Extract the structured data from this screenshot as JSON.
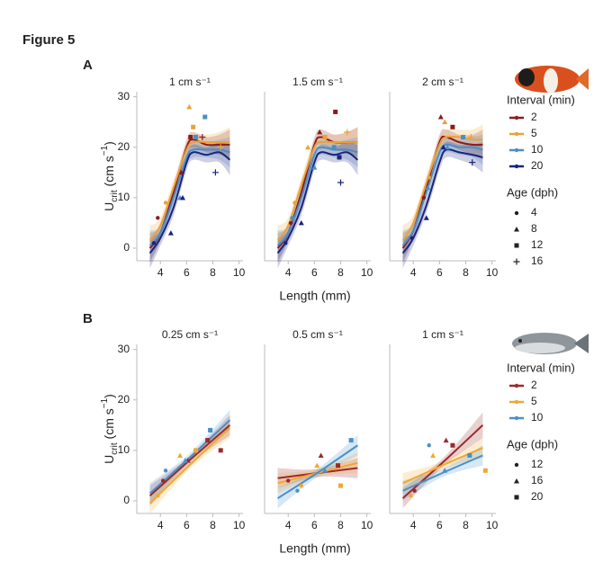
{
  "figure_title": "Figure 5",
  "rows": [
    {
      "label": "A",
      "y_label": [
        "U",
        "crit",
        " (cm s",
        "−1",
        ")"
      ],
      "x_label": "Length (mm)",
      "interval_title": "Interval (min)",
      "age_title": "Age (dph)",
      "ages": [
        "4",
        "8",
        "12",
        "16"
      ],
      "ylim": [
        -2.5,
        31
      ],
      "yticks": [
        0,
        10,
        20,
        30
      ]
    },
    {
      "label": "B",
      "y_label": [
        "U",
        "crit",
        " (cm s",
        "−1",
        ")"
      ],
      "x_label": "Length (mm)",
      "interval_title": "Interval (min)",
      "age_title": "Age (dph)",
      "ages": [
        "12",
        "16",
        "20"
      ],
      "ylim": [
        -2.5,
        31
      ],
      "yticks": [
        0,
        10,
        20,
        30
      ]
    }
  ],
  "chart_data": [
    {
      "type": "line",
      "title": "1 cm s⁻¹",
      "xlim": [
        2.2,
        10.3
      ],
      "xticks": [
        4,
        6,
        8,
        10
      ],
      "series": [
        {
          "name": "2",
          "color": "#8b1c1c",
          "x": [
            3.2,
            4,
            5,
            6,
            6.5,
            7.5,
            8.5,
            9.3
          ],
          "values": [
            0,
            3,
            11,
            20,
            21.5,
            20.5,
            20.5,
            20.5
          ],
          "error": [
            3,
            1.5,
            1.5,
            1.5,
            1.5,
            1.5,
            2,
            3
          ],
          "points_x": [
            3.8,
            5.6,
            6.3,
            7.2
          ],
          "points_y": [
            6,
            15,
            22,
            22
          ],
          "points_age": [
            "4",
            "8",
            "12",
            "16"
          ]
        },
        {
          "name": "5",
          "color": "#e8a23a",
          "x": [
            3.2,
            4,
            5,
            6,
            6.5,
            7.5,
            8.5,
            9.3
          ],
          "values": [
            1.5,
            4.5,
            12,
            19.5,
            21,
            21,
            21,
            21
          ],
          "error": [
            3,
            1.5,
            1.5,
            1.5,
            1.5,
            1.5,
            2,
            3
          ],
          "points_x": [
            4.4,
            6.2,
            6.5,
            8.6
          ],
          "points_y": [
            9,
            28,
            24,
            20
          ],
          "points_age": [
            "4",
            "8",
            "12",
            "16"
          ]
        },
        {
          "name": "10",
          "color": "#4a8fc4",
          "x": [
            3.2,
            4,
            5,
            6,
            6.5,
            7.5,
            8.5,
            9.3
          ],
          "values": [
            0.5,
            3,
            10,
            18,
            19.5,
            19.5,
            19.5,
            19
          ],
          "error": [
            3,
            1.5,
            1.5,
            1.5,
            1.5,
            1.5,
            2,
            3
          ],
          "points_x": [
            5.5,
            6.7,
            7.4
          ],
          "points_y": [
            10,
            22,
            26
          ],
          "points_age": [
            "8",
            "12",
            "12"
          ]
        },
        {
          "name": "20",
          "color": "#1a237e",
          "x": [
            3.2,
            4,
            5,
            6,
            6.5,
            7.5,
            8.5,
            9.3
          ],
          "values": [
            -1,
            2,
            8,
            17,
            19,
            18.5,
            19,
            17.5
          ],
          "error": [
            3,
            1.5,
            1.5,
            1.5,
            1.5,
            1.5,
            2,
            3
          ],
          "points_x": [
            3.5,
            4.8,
            5.7,
            8.2
          ],
          "points_y": [
            1,
            3,
            10,
            15
          ],
          "points_age": [
            "4",
            "8",
            "8",
            "16"
          ]
        }
      ]
    },
    {
      "type": "line",
      "title": "1.5 cm s⁻¹",
      "xlim": [
        2.2,
        10.3
      ],
      "xticks": [
        4,
        6,
        8,
        10
      ],
      "series": [
        {
          "name": "2",
          "color": "#8b1c1c",
          "x": [
            3.2,
            4,
            5,
            6,
            6.5,
            7.5,
            8.5,
            9.3
          ],
          "values": [
            0,
            3,
            11,
            20.5,
            22,
            21,
            21,
            21
          ],
          "error": [
            3,
            1.5,
            1.5,
            1.5,
            1.5,
            1.5,
            2,
            3
          ],
          "points_x": [
            4.2,
            6.4,
            7.6
          ],
          "points_y": [
            5,
            23,
            27
          ],
          "points_age": [
            "4",
            "8",
            "12"
          ]
        },
        {
          "name": "5",
          "color": "#e8a23a",
          "x": [
            3.2,
            4,
            5,
            6,
            6.5,
            7.5,
            8.5,
            9.3
          ],
          "values": [
            1.5,
            4.5,
            12.5,
            20,
            21,
            21,
            21,
            21
          ],
          "error": [
            3,
            1.5,
            1.5,
            1.5,
            1.5,
            1.5,
            2,
            3
          ],
          "points_x": [
            4.5,
            5.5,
            6.8,
            8.5
          ],
          "points_y": [
            9,
            20,
            22,
            23
          ],
          "points_age": [
            "4",
            "8",
            "12",
            "16"
          ]
        },
        {
          "name": "10",
          "color": "#4a8fc4",
          "x": [
            3.2,
            4,
            5,
            6,
            6.5,
            7.5,
            8.5,
            9.3
          ],
          "values": [
            0.5,
            3,
            10,
            18.5,
            20,
            19.5,
            19.5,
            19
          ],
          "error": [
            3,
            1.5,
            1.5,
            1.5,
            1.5,
            1.5,
            2,
            3
          ],
          "points_x": [
            4.3,
            6,
            7.5
          ],
          "points_y": [
            6,
            16,
            20
          ],
          "points_age": [
            "4",
            "8",
            "12"
          ]
        },
        {
          "name": "20",
          "color": "#1a237e",
          "x": [
            3.2,
            4,
            5,
            6,
            6.5,
            7.5,
            8.5,
            9.3
          ],
          "values": [
            -1,
            2,
            8,
            17,
            19,
            18.5,
            19,
            17.5
          ],
          "error": [
            3,
            1.5,
            1.5,
            1.5,
            1.5,
            1.5,
            2,
            3
          ],
          "points_x": [
            3.8,
            5,
            7.9,
            8
          ],
          "points_y": [
            1,
            5,
            18,
            13
          ],
          "points_age": [
            "4",
            "8",
            "12",
            "16"
          ]
        }
      ]
    },
    {
      "type": "line",
      "title": "2 cm s⁻¹",
      "xlim": [
        2.2,
        10.3
      ],
      "xticks": [
        4,
        6,
        8,
        10
      ],
      "series": [
        {
          "name": "2",
          "color": "#8b1c1c",
          "x": [
            3.2,
            4,
            5,
            6,
            6.5,
            7.5,
            8.5,
            9.3
          ],
          "values": [
            0,
            3.5,
            12,
            21,
            22,
            21,
            20.5,
            20.5
          ],
          "error": [
            3,
            1.5,
            1.5,
            1.5,
            1.5,
            1.5,
            2,
            3
          ],
          "points_x": [
            4.8,
            6.1,
            7
          ],
          "points_y": [
            10,
            26,
            24
          ],
          "points_age": [
            "4",
            "8",
            "12"
          ]
        },
        {
          "name": "5",
          "color": "#e8a23a",
          "x": [
            3.2,
            4,
            5,
            6,
            6.5,
            7.5,
            8.5,
            9.3
          ],
          "values": [
            1.5,
            5,
            13,
            20.5,
            22,
            22,
            21.5,
            21.5
          ],
          "error": [
            3,
            1.5,
            1.5,
            1.5,
            1.5,
            1.5,
            2,
            3
          ],
          "points_x": [
            5.2,
            6.4,
            8.4
          ],
          "points_y": [
            14,
            25,
            22
          ],
          "points_age": [
            "4",
            "8",
            "16"
          ]
        },
        {
          "name": "10",
          "color": "#4a8fc4",
          "x": [
            3.2,
            4,
            5,
            6,
            6.5,
            7.5,
            8.5,
            9.3
          ],
          "values": [
            0.5,
            3.5,
            11,
            19,
            20.5,
            20,
            20,
            19.5
          ],
          "error": [
            3,
            1.5,
            1.5,
            1.5,
            1.5,
            1.5,
            2,
            3
          ],
          "points_x": [
            5.1,
            6.6,
            7.8
          ],
          "points_y": [
            12,
            20,
            22
          ],
          "points_age": [
            "8",
            "8",
            "12"
          ]
        },
        {
          "name": "20",
          "color": "#1a237e",
          "x": [
            3.2,
            4,
            5,
            6,
            6.5,
            7.5,
            8.5,
            9.3
          ],
          "values": [
            -1,
            2,
            8.5,
            17,
            19.5,
            19,
            18.5,
            18
          ],
          "error": [
            3,
            1.5,
            1.5,
            1.5,
            1.5,
            1.5,
            2,
            3
          ],
          "points_x": [
            3.9,
            5,
            6.3,
            8.5
          ],
          "points_y": [
            2,
            6,
            20,
            17
          ],
          "points_age": [
            "4",
            "8",
            "8",
            "16"
          ]
        }
      ]
    },
    {
      "type": "line",
      "title": "0.25 cm s⁻¹",
      "xlim": [
        2.2,
        10.3
      ],
      "xticks": [
        4,
        6,
        8,
        10
      ],
      "series": [
        {
          "name": "2",
          "color": "#9b2a2a",
          "x": [
            3.2,
            6.2,
            9.3
          ],
          "values": [
            1,
            8,
            15
          ],
          "error": [
            2,
            0.8,
            2
          ],
          "points_x": [
            4.2,
            6.1,
            7.6,
            8.6
          ],
          "points_y": [
            4,
            8,
            12,
            10
          ],
          "points_age": [
            "12",
            "16",
            "20",
            "20"
          ]
        },
        {
          "name": "5",
          "color": "#f0a830",
          "x": [
            3.2,
            6.2,
            9.3
          ],
          "values": [
            -0.5,
            7,
            14.5
          ],
          "error": [
            2,
            0.8,
            2
          ],
          "points_x": [
            3.8,
            5.5,
            6.7
          ],
          "points_y": [
            1,
            9,
            10
          ],
          "points_age": [
            "12",
            "16",
            "20"
          ]
        },
        {
          "name": "10",
          "color": "#4a90c8",
          "x": [
            3.2,
            6.2,
            9.3
          ],
          "values": [
            1.5,
            8.5,
            16
          ],
          "error": [
            2,
            0.8,
            2
          ],
          "points_x": [
            4.4,
            5.9,
            7.8
          ],
          "points_y": [
            6,
            8,
            14
          ],
          "points_age": [
            "12",
            "16",
            "20"
          ]
        }
      ]
    },
    {
      "type": "line",
      "title": "0.5 cm s⁻¹",
      "xlim": [
        2.2,
        10.3
      ],
      "xticks": [
        4,
        6,
        8,
        10
      ],
      "series": [
        {
          "name": "2",
          "color": "#9b2a2a",
          "x": [
            3.2,
            6.2,
            9.3
          ],
          "values": [
            4.5,
            5.5,
            6.5
          ],
          "error": [
            2,
            0.8,
            2
          ],
          "points_x": [
            4,
            6.5,
            7.8
          ],
          "points_y": [
            4,
            9,
            7
          ],
          "points_age": [
            "12",
            "16",
            "20"
          ]
        },
        {
          "name": "5",
          "color": "#f0a830",
          "x": [
            3.2,
            6.2,
            9.3
          ],
          "values": [
            3.5,
            5.5,
            7.5
          ],
          "error": [
            2,
            0.8,
            2
          ],
          "points_x": [
            5,
            6.2,
            8
          ],
          "points_y": [
            3,
            7,
            3
          ],
          "points_age": [
            "12",
            "16",
            "20"
          ]
        },
        {
          "name": "10",
          "color": "#4a90c8",
          "x": [
            3.2,
            6.2,
            9.3
          ],
          "values": [
            0.5,
            5.5,
            11
          ],
          "error": [
            2,
            0.8,
            2
          ],
          "points_x": [
            4.7,
            6.8,
            8.8
          ],
          "points_y": [
            2,
            6,
            12
          ],
          "points_age": [
            "12",
            "16",
            "20"
          ]
        }
      ]
    },
    {
      "type": "line",
      "title": "1 cm s⁻¹",
      "xlim": [
        2.2,
        10.3
      ],
      "xticks": [
        4,
        6,
        8,
        10
      ],
      "series": [
        {
          "name": "2",
          "color": "#9b2a2a",
          "x": [
            3.2,
            6.2,
            9.3
          ],
          "values": [
            0.5,
            7.5,
            15
          ],
          "error": [
            2,
            0.8,
            2.5
          ],
          "points_x": [
            4.1,
            6.5,
            7
          ],
          "points_y": [
            2,
            12,
            11
          ],
          "points_age": [
            "12",
            "16",
            "20"
          ]
        },
        {
          "name": "5",
          "color": "#f0a830",
          "x": [
            3.2,
            6.2,
            9.3
          ],
          "values": [
            3.5,
            7,
            10.5
          ],
          "error": [
            2,
            0.8,
            2
          ],
          "points_x": [
            3.8,
            5.5,
            9.5
          ],
          "points_y": [
            1,
            9,
            6
          ],
          "points_age": [
            "12",
            "16",
            "20"
          ]
        },
        {
          "name": "10",
          "color": "#4a90c8",
          "x": [
            3.2,
            6.2,
            9.3
          ],
          "values": [
            2,
            5.5,
            9
          ],
          "error": [
            2,
            0.8,
            2
          ],
          "points_x": [
            5.2,
            6.4,
            8.3
          ],
          "points_y": [
            11,
            6,
            9
          ],
          "points_age": [
            "12",
            "16",
            "20"
          ]
        }
      ]
    }
  ]
}
